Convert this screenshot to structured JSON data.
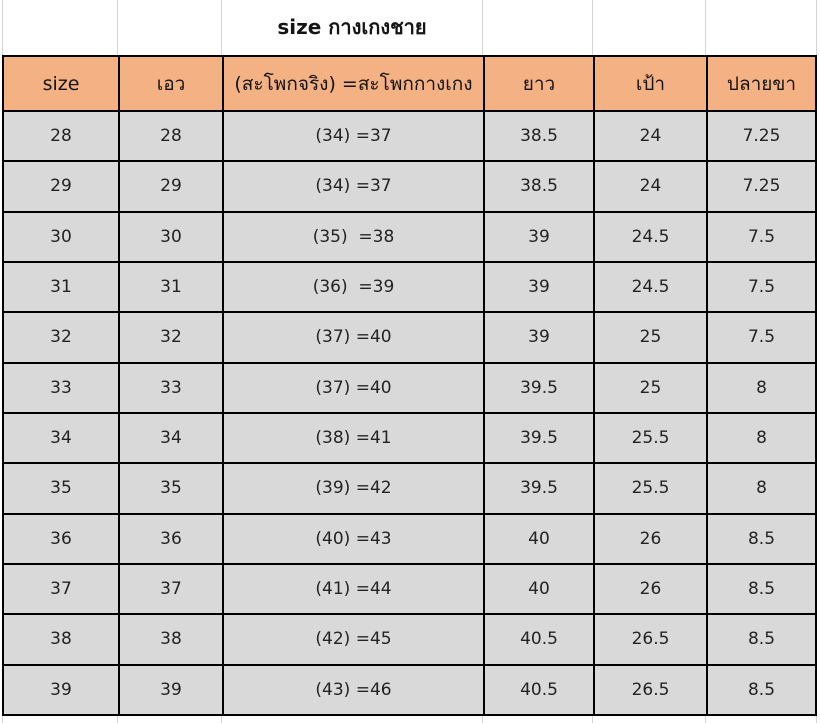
{
  "title": "size กางเกงชาย",
  "table": {
    "headers": [
      "size",
      "เอว",
      "(สะโพกจริง) =สะโพกกางเกง",
      "ยาว",
      "เป้า",
      "ปลายขา"
    ],
    "rows": [
      [
        "28",
        "28",
        "(34) =37",
        "38.5",
        "24",
        "7.25"
      ],
      [
        "29",
        "29",
        "(34) =37",
        "38.5",
        "24",
        "7.25"
      ],
      [
        "30",
        "30",
        "(35)  =38",
        "39",
        "24.5",
        "7.5"
      ],
      [
        "31",
        "31",
        "(36)  =39",
        "39",
        "24.5",
        "7.5"
      ],
      [
        "32",
        "32",
        "(37) =40",
        "39",
        "25",
        "7.5"
      ],
      [
        "33",
        "33",
        "(37) =40",
        "39.5",
        "25",
        "8"
      ],
      [
        "34",
        "34",
        "(38) =41",
        "39.5",
        "25.5",
        "8"
      ],
      [
        "35",
        "35",
        "(39) =42",
        "39.5",
        "25.5",
        "8"
      ],
      [
        "36",
        "36",
        "(40) =43",
        "40",
        "26",
        "8.5"
      ],
      [
        "37",
        "37",
        "(41) =44",
        "40",
        "26",
        "8.5"
      ],
      [
        "38",
        "38",
        "(42) =45",
        "40.5",
        "26.5",
        "8.5"
      ],
      [
        "39",
        "39",
        "(43) =46",
        "40.5",
        "26.5",
        "8.5"
      ]
    ]
  },
  "colors": {
    "header_bg": "#F4B183",
    "row_bg": "#D9D9D9",
    "border": "#000000",
    "gridline": "#D4D4D4",
    "text": "#1F1F1F"
  }
}
